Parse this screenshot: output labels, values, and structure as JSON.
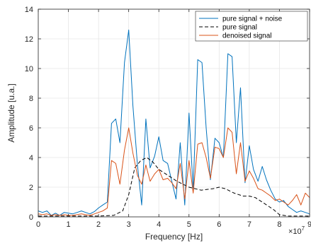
{
  "chart_data": {
    "type": "line",
    "xlabel": "Frequency [Hz]",
    "ylabel": "Amplitude [u.a.]",
    "x_exponent_label": "×10",
    "x_exponent_power": "7",
    "xlim": [
      0,
      9
    ],
    "ylim": [
      0,
      14
    ],
    "xticks": [
      "0",
      "1",
      "2",
      "3",
      "4",
      "5",
      "6",
      "7",
      "8",
      "9"
    ],
    "yticks": [
      "0",
      "2",
      "4",
      "6",
      "8",
      "10",
      "12",
      "14"
    ],
    "grid": true,
    "legend_position": "top-right",
    "series": [
      {
        "name": "pure signal + noise",
        "color": "#0072BD",
        "dash": "solid",
        "x": [
          0.0,
          0.14,
          0.29,
          0.43,
          0.57,
          0.71,
          0.86,
          1.0,
          1.14,
          1.29,
          1.43,
          1.57,
          1.71,
          1.86,
          2.0,
          2.14,
          2.29,
          2.43,
          2.57,
          2.71,
          2.86,
          3.0,
          3.14,
          3.29,
          3.43,
          3.57,
          3.71,
          3.86,
          4.0,
          4.14,
          4.29,
          4.43,
          4.57,
          4.71,
          4.86,
          5.0,
          5.14,
          5.29,
          5.43,
          5.57,
          5.71,
          5.86,
          6.0,
          6.14,
          6.29,
          6.43,
          6.57,
          6.71,
          6.86,
          7.0,
          7.14,
          7.29,
          7.43,
          7.57,
          7.71,
          7.86,
          8.0,
          8.14,
          8.29,
          8.43,
          8.57,
          8.71,
          8.86,
          9.0
        ],
        "y": [
          0.4,
          0.3,
          0.4,
          0.1,
          0.25,
          0.1,
          0.3,
          0.25,
          0.2,
          0.3,
          0.4,
          0.3,
          0.2,
          0.35,
          0.6,
          0.8,
          1.0,
          6.3,
          6.6,
          5.0,
          10.4,
          12.6,
          7.5,
          3.5,
          0.8,
          6.6,
          3.3,
          4.1,
          5.4,
          3.8,
          3.6,
          2.4,
          1.2,
          5.0,
          0.8,
          7.0,
          1.8,
          10.6,
          10.4,
          6.0,
          2.5,
          5.3,
          5.0,
          4.0,
          11.0,
          10.8,
          5.0,
          8.7,
          2.3,
          4.8,
          3.2,
          2.4,
          3.4,
          2.5,
          1.8,
          1.2,
          1.0,
          1.1,
          0.7,
          0.5,
          0.3,
          0.4,
          0.3,
          0.2
        ]
      },
      {
        "name": "pure signal",
        "color": "#000000",
        "dash": "dashed",
        "x": [
          0.0,
          0.5,
          1.0,
          1.5,
          2.0,
          2.5,
          2.8,
          3.0,
          3.2,
          3.4,
          3.6,
          3.8,
          4.0,
          4.3,
          4.6,
          5.0,
          5.4,
          5.8,
          6.0,
          6.2,
          6.5,
          6.8,
          7.0,
          7.2,
          7.5,
          7.8,
          8.0,
          8.3,
          8.6,
          9.0
        ],
        "y": [
          0.05,
          0.05,
          0.05,
          0.05,
          0.05,
          0.1,
          0.4,
          1.5,
          3.3,
          3.8,
          4.0,
          3.7,
          3.2,
          2.8,
          2.4,
          2.0,
          1.8,
          1.9,
          2.0,
          1.9,
          1.6,
          1.4,
          1.4,
          1.3,
          0.9,
          0.5,
          0.15,
          0.05,
          0.05,
          0.05
        ]
      },
      {
        "name": "denoised signal",
        "color": "#D95319",
        "dash": "solid",
        "x": [
          0.0,
          0.14,
          0.29,
          0.43,
          0.57,
          0.71,
          0.86,
          1.0,
          1.14,
          1.29,
          1.43,
          1.57,
          1.71,
          1.86,
          2.0,
          2.14,
          2.29,
          2.43,
          2.57,
          2.71,
          2.86,
          3.0,
          3.14,
          3.29,
          3.43,
          3.57,
          3.71,
          3.86,
          4.0,
          4.14,
          4.29,
          4.43,
          4.57,
          4.71,
          4.86,
          5.0,
          5.14,
          5.29,
          5.43,
          5.57,
          5.71,
          5.86,
          6.0,
          6.14,
          6.29,
          6.43,
          6.57,
          6.71,
          6.86,
          7.0,
          7.14,
          7.29,
          7.43,
          7.57,
          7.71,
          7.86,
          8.0,
          8.14,
          8.29,
          8.43,
          8.57,
          8.71,
          8.86,
          9.0
        ],
        "y": [
          0.2,
          0.15,
          0.2,
          0.1,
          0.15,
          0.1,
          0.15,
          0.1,
          0.1,
          0.15,
          0.2,
          0.15,
          0.1,
          0.2,
          0.3,
          0.4,
          0.6,
          3.8,
          3.6,
          2.2,
          4.5,
          6.0,
          4.3,
          2.8,
          2.2,
          3.5,
          2.4,
          2.9,
          3.2,
          2.5,
          2.6,
          2.3,
          1.9,
          3.6,
          1.2,
          3.8,
          1.6,
          4.9,
          5.0,
          4.0,
          2.6,
          4.7,
          4.6,
          4.0,
          6.0,
          5.7,
          2.9,
          5.0,
          2.4,
          3.1,
          2.6,
          1.9,
          1.8,
          1.6,
          1.4,
          1.1,
          1.2,
          1.0,
          0.8,
          1.1,
          1.5,
          0.8,
          1.6,
          1.3
        ]
      }
    ]
  }
}
